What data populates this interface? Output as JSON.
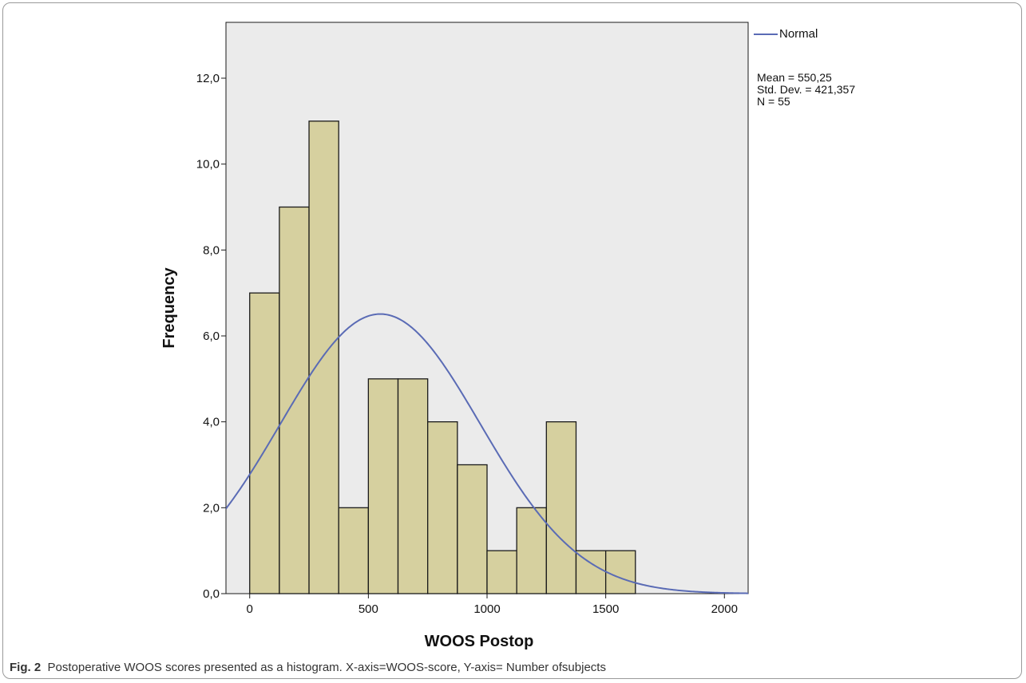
{
  "chart_data": {
    "type": "bar",
    "subtype": "histogram",
    "xlabel": "WOOS Postop",
    "ylabel": "Frequency",
    "xlim": [
      -100,
      2100
    ],
    "ylim": [
      0,
      13.3
    ],
    "x_ticks": [
      0,
      500,
      1000,
      1500,
      2000
    ],
    "x_tick_labels": [
      "0",
      "500",
      "1000",
      "1500",
      "2000"
    ],
    "y_ticks": [
      0,
      2,
      4,
      6,
      8,
      10,
      12
    ],
    "y_tick_labels": [
      "0,0",
      "2,0",
      "4,0",
      "6,0",
      "8,0",
      "10,0",
      "12,0"
    ],
    "bin_width": 125,
    "bins": [
      {
        "start": 0,
        "end": 125,
        "count": 7
      },
      {
        "start": 125,
        "end": 250,
        "count": 9
      },
      {
        "start": 250,
        "end": 375,
        "count": 11
      },
      {
        "start": 375,
        "end": 500,
        "count": 2
      },
      {
        "start": 500,
        "end": 625,
        "count": 5
      },
      {
        "start": 625,
        "end": 750,
        "count": 5
      },
      {
        "start": 750,
        "end": 875,
        "count": 4
      },
      {
        "start": 875,
        "end": 1000,
        "count": 3
      },
      {
        "start": 1000,
        "end": 1125,
        "count": 1
      },
      {
        "start": 1125,
        "end": 1250,
        "count": 2
      },
      {
        "start": 1250,
        "end": 1375,
        "count": 4
      },
      {
        "start": 1375,
        "end": 1500,
        "count": 1
      },
      {
        "start": 1500,
        "end": 1625,
        "count": 1
      }
    ],
    "normal_curve": {
      "name": "Normal",
      "mean": 550.25,
      "std_dev": 421.357,
      "n": 55
    },
    "legend_position": "top-right",
    "grid": false,
    "colors": {
      "bar_fill": "#d6d09f",
      "bar_edge": "#1a1a1a",
      "plot_bg": "#ebebeb",
      "curve": "#5a6bb5"
    }
  },
  "legend": {
    "normal_label": "Normal"
  },
  "stats": {
    "mean": "Mean = 550,25",
    "std_dev": "Std. Dev. = 421,357",
    "n": "N = 55"
  },
  "caption": {
    "label": "Fig. 2",
    "text": "Postoperative WOOS scores presented as a histogram. X-axis=WOOS-score, Y-axis= Number ofsubjects"
  }
}
